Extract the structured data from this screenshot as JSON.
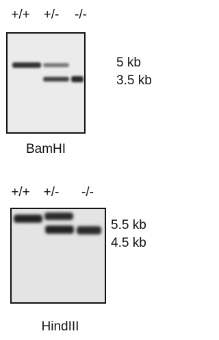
{
  "panels": [
    {
      "lanes": [
        "+/+",
        "+/-",
        "-/-"
      ],
      "sizes": [
        "5 kb",
        "3.5 kb"
      ],
      "enzyme": "BamHI"
    },
    {
      "lanes": [
        "+/+",
        "+/-",
        "-/-"
      ],
      "sizes": [
        "5.5 kb",
        "4.5 kb"
      ],
      "enzyme": "HindIII"
    }
  ]
}
